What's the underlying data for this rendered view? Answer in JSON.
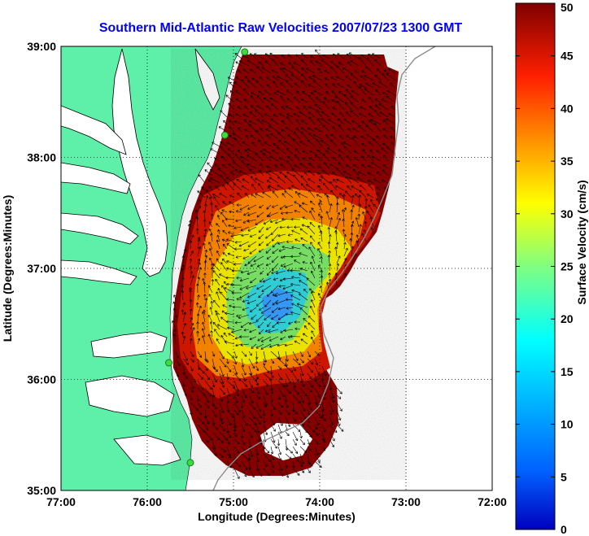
{
  "title": "Southern Mid-Atlantic Raw Velocities 2007/07/23 1300 GMT",
  "x_axis": {
    "label": "Longitude (Degrees:Minutes)",
    "ticks": [
      "77:00",
      "76:00",
      "75:00",
      "74:00",
      "73:00",
      "72:00"
    ]
  },
  "y_axis": {
    "label": "Latitude (Degrees:Minutes)",
    "ticks": [
      "39:00",
      "38:00",
      "37:00",
      "36:00",
      "35:00"
    ]
  },
  "colorbar": {
    "label": "Surface Velocity (cm/s)",
    "ticks": [
      "50",
      "45",
      "40",
      "35",
      "30",
      "25",
      "20",
      "15",
      "10",
      "5",
      "0"
    ],
    "range": [
      0,
      50
    ],
    "colormap": "jet"
  },
  "colors": {
    "land": "#5ef0a8",
    "water": "#ffffff",
    "title": "#0000ff",
    "station": "#3ddc3d",
    "isobath": "#8c8c8c"
  },
  "map": {
    "lon_range": [
      -77,
      -72
    ],
    "lat_range": [
      35,
      39
    ],
    "grid": "dotted"
  },
  "stations": [
    {
      "lon": -74.87,
      "lat": 38.95
    },
    {
      "lon": -75.1,
      "lat": 38.2
    },
    {
      "lon": -75.75,
      "lat": 36.15
    },
    {
      "lon": -75.5,
      "lat": 35.25
    }
  ]
}
